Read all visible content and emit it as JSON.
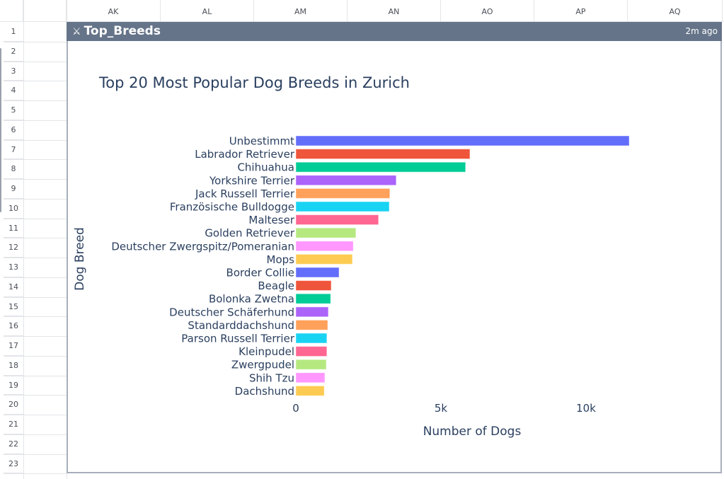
{
  "sheet": {
    "columns": [
      "AK",
      "AL",
      "AM",
      "AN",
      "AO",
      "AP",
      "AQ"
    ],
    "rows": [
      "1",
      "2",
      "3",
      "4",
      "5",
      "6",
      "7",
      "8",
      "9",
      "10",
      "11",
      "12",
      "13",
      "14",
      "15",
      "16",
      "17",
      "18",
      "19",
      "20",
      "21",
      "22",
      "23"
    ]
  },
  "card": {
    "icon": "python-icon",
    "title": "Top_Breeds",
    "timestamp": "2m ago",
    "header_color": "#657489"
  },
  "chart_data": {
    "type": "bar",
    "orientation": "horizontal",
    "title": "Top 20 Most Popular Dog Breeds in Zurich",
    "xlabel": "Number of Dogs",
    "ylabel": "Dog Breed",
    "xlim": [
      0,
      13500
    ],
    "xticks": [
      0,
      5000,
      10000
    ],
    "xtick_labels": [
      "0",
      "5k",
      "10k"
    ],
    "grid": false,
    "categories": [
      "Unbestimmt",
      "Labrador Retriever",
      "Chihuahua",
      "Yorkshire Terrier",
      "Jack Russell Terrier",
      "Französische Bulldogge",
      "Malteser",
      "Golden Retriever",
      "Deutscher Zwergspitz/Pomeranian",
      "Mops",
      "Border Collie",
      "Beagle",
      "Bolonka Zwetna",
      "Deutscher Schäferhund",
      "Standarddachshund",
      "Parson Russell Terrier",
      "Kleinpudel",
      "Zwergpudel",
      "Shih Tzu",
      "Dachshund"
    ],
    "values": [
      11490,
      6000,
      5850,
      3460,
      3240,
      3220,
      2850,
      2070,
      1980,
      1950,
      1490,
      1220,
      1200,
      1120,
      1100,
      1070,
      1070,
      1050,
      1000,
      980
    ],
    "colors": [
      "#636efa",
      "#ef553b",
      "#00cc96",
      "#ab63fa",
      "#ffa15a",
      "#19d3f3",
      "#ff6692",
      "#b6e880",
      "#ff97ff",
      "#fecb52",
      "#636efa",
      "#ef553b",
      "#00cc96",
      "#ab63fa",
      "#ffa15a",
      "#19d3f3",
      "#ff6692",
      "#b6e880",
      "#ff97ff",
      "#fecb52"
    ]
  }
}
